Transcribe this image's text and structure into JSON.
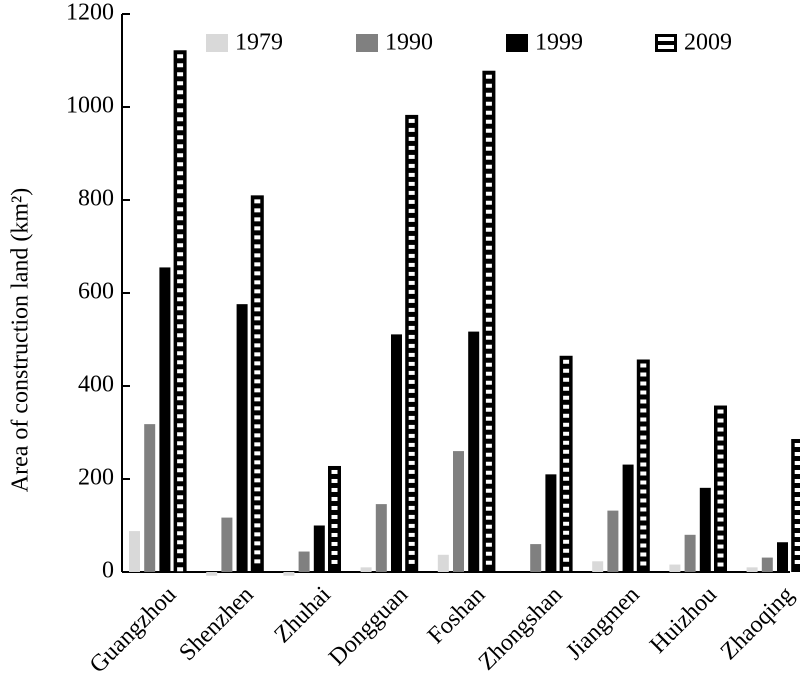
{
  "chart_data": {
    "type": "bar",
    "title": "",
    "xlabel": "",
    "ylabel": "Area of construction land (km²)",
    "ylim": [
      0,
      1200
    ],
    "yticks": [
      "0",
      "200",
      "400",
      "600",
      "800",
      "1000",
      "1200"
    ],
    "grid": false,
    "legend_position": "top",
    "categories": [
      "Guangzhou",
      "Shenzhen",
      "Zhuhai",
      "Dongguan",
      "Foshan",
      "Zhongshan",
      "Jiangmen",
      "Huizhou",
      "Zhaoqing"
    ],
    "series": [
      {
        "name": "1979",
        "color": "#d9d9d9",
        "pattern": "solid",
        "values": [
          88,
          -8,
          -8,
          10,
          37,
          0,
          23,
          16,
          10
        ]
      },
      {
        "name": "1990",
        "color": "#808080",
        "pattern": "solid",
        "values": [
          318,
          117,
          44,
          146,
          260,
          60,
          132,
          80,
          31
        ]
      },
      {
        "name": "1999",
        "color": "#000000",
        "pattern": "solid",
        "values": [
          655,
          576,
          100,
          511,
          517,
          210,
          231,
          181,
          64
        ]
      },
      {
        "name": "2009",
        "color": "#000000",
        "pattern": "horizontal-stripes",
        "values": [
          1122,
          810,
          228,
          983,
          1078,
          465,
          457,
          358,
          286
        ]
      }
    ]
  }
}
